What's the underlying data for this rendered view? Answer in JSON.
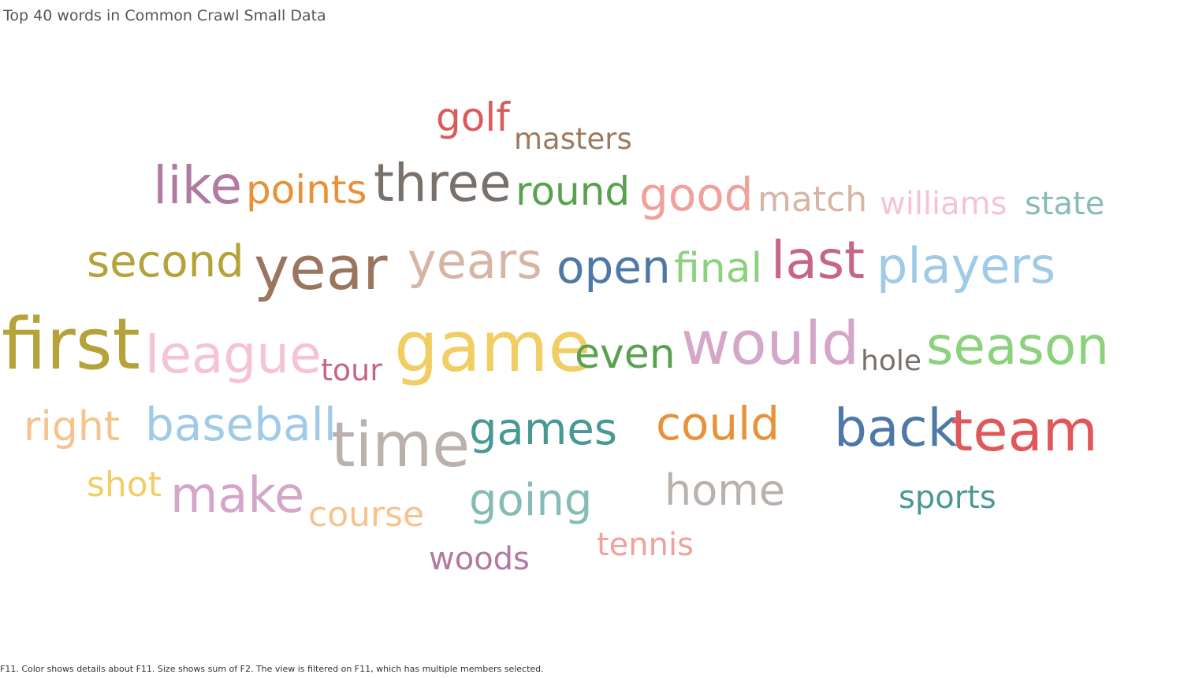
{
  "title": "Top 40 words in Common Crawl Small Data",
  "caption": "F11.  Color shows details about F11.  Size shows sum of F2. The view is filtered on F11, which has multiple members selected.",
  "chart_data": {
    "type": "word_cloud",
    "words": [
      {
        "text": "golf",
        "color": "#d95b5b",
        "size_rank": 22
      },
      {
        "text": "masters",
        "color": "#9b7b5f",
        "size_rank": 31
      },
      {
        "text": "like",
        "color": "#b07aa1",
        "size_rank": 12
      },
      {
        "text": "points",
        "color": "#e8913a",
        "size_rank": 23
      },
      {
        "text": "three",
        "color": "#7a706b",
        "size_rank": 9
      },
      {
        "text": "round",
        "color": "#59a14f",
        "size_rank": 20
      },
      {
        "text": "good",
        "color": "#f1a09a",
        "size_rank": 16
      },
      {
        "text": "match",
        "color": "#d7b5a6",
        "size_rank": 27
      },
      {
        "text": "williams",
        "color": "#f6c3d3",
        "size_rank": 29
      },
      {
        "text": "state",
        "color": "#86bcb6",
        "size_rank": 30
      },
      {
        "text": "second",
        "color": "#b5a238",
        "size_rank": 15
      },
      {
        "text": "year",
        "color": "#9c755f",
        "size_rank": 3
      },
      {
        "text": "years",
        "color": "#d7b5a6",
        "size_rank": 11
      },
      {
        "text": "open",
        "color": "#4e79a7",
        "size_rank": 14
      },
      {
        "text": "final",
        "color": "#8cd17d",
        "size_rank": 21
      },
      {
        "text": "last",
        "color": "#c7648a",
        "size_rank": 10
      },
      {
        "text": "players",
        "color": "#a0cbe8",
        "size_rank": 13
      },
      {
        "text": "first",
        "color": "#b5a238",
        "size_rank": 1
      },
      {
        "text": "league",
        "color": "#f6c3d3",
        "size_rank": 8
      },
      {
        "text": "tour",
        "color": "#c7648a",
        "size_rank": 32
      },
      {
        "text": "game",
        "color": "#f1ce63",
        "size_rank": 2
      },
      {
        "text": "even",
        "color": "#59a14f",
        "size_rank": 24
      },
      {
        "text": "would",
        "color": "#d4a6c8",
        "size_rank": 5
      },
      {
        "text": "hole",
        "color": "#7a706b",
        "size_rank": 34
      },
      {
        "text": "season",
        "color": "#8cd17d",
        "size_rank": 6
      },
      {
        "text": "right",
        "color": "#f7c38d",
        "size_rank": 26
      },
      {
        "text": "baseball",
        "color": "#a0cbe8",
        "size_rank": 17
      },
      {
        "text": "time",
        "color": "#bab0ac",
        "size_rank": 4
      },
      {
        "text": "games",
        "color": "#499894",
        "size_rank": 19
      },
      {
        "text": "could",
        "color": "#e8913a",
        "size_rank": 18
      },
      {
        "text": "back",
        "color": "#4e79a7",
        "size_rank": 7
      },
      {
        "text": "team",
        "color": "#e15759",
        "size_rank": 7
      },
      {
        "text": "shot",
        "color": "#f1ce63",
        "size_rank": 33
      },
      {
        "text": "make",
        "color": "#d4a6c8",
        "size_rank": 12
      },
      {
        "text": "course",
        "color": "#f7c38d",
        "size_rank": 28
      },
      {
        "text": "going",
        "color": "#86bcb6",
        "size_rank": 18
      },
      {
        "text": "home",
        "color": "#bab0ac",
        "size_rank": 25
      },
      {
        "text": "sports",
        "color": "#499894",
        "size_rank": 35
      },
      {
        "text": "tennis",
        "color": "#f1a09a",
        "size_rank": 36
      },
      {
        "text": "woods",
        "color": "#b07aa1",
        "size_rank": 37
      }
    ]
  }
}
